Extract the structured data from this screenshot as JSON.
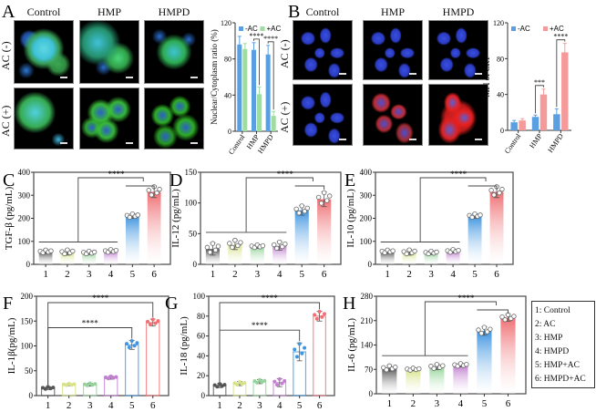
{
  "panel_A": {
    "letter": "A",
    "columns": [
      "Control",
      "HMP",
      "HMPD"
    ],
    "rows": [
      "AC (-)",
      "AC (+)"
    ]
  },
  "panel_B": {
    "letter": "B",
    "columns": [
      "Control",
      "HMP",
      "HMPD"
    ],
    "rows": [
      "AC (-)",
      "AC (+)"
    ]
  },
  "legend_H": [
    "1: Control",
    "2: AC",
    "3: HMP",
    "4: HMPD",
    "5: HMP+AC",
    "6: HMPD+AC"
  ],
  "colors": {
    "minusAC": "#5b9fe3",
    "plusAC_A": "#9fdca0",
    "plusAC_B": "#f59a9a",
    "g1": "#555555",
    "g2": "#d8e28a",
    "g3": "#94d49a",
    "g4": "#c27fd0",
    "g5": "#3f95e0",
    "g6": "#ef6f73"
  },
  "chart_data": [
    {
      "panel": "A",
      "type": "bar",
      "grouped": true,
      "title": "",
      "xlabel": "",
      "ylabel": "Nuclear/Cytoplasm ratio (%)",
      "ylim": [
        0,
        120
      ],
      "yticks": [
        0,
        40,
        80,
        120
      ],
      "categories": [
        "Control",
        "HMP",
        "HMPD"
      ],
      "series": [
        {
          "name": "-AC",
          "color": "#5b9fe3",
          "values": [
            96,
            90,
            85
          ],
          "err": [
            9,
            8,
            10
          ]
        },
        {
          "name": "+AC",
          "color": "#9fdca0",
          "values": [
            91,
            41,
            17
          ],
          "err": [
            6,
            8,
            5
          ]
        }
      ],
      "significance": [
        {
          "category": 1,
          "label": "****"
        },
        {
          "category": 2,
          "label": "****"
        }
      ],
      "legend": "top"
    },
    {
      "panel": "B",
      "type": "bar",
      "grouped": true,
      "title": "",
      "xlabel": "",
      "ylabel": "MFI of CRT",
      "ylim": [
        0,
        120
      ],
      "yticks": [
        0,
        40,
        80,
        120
      ],
      "categories": [
        "Control",
        "HMP",
        "HMPD"
      ],
      "series": [
        {
          "name": "-AC",
          "color": "#5b9fe3",
          "values": [
            9,
            15,
            18
          ],
          "err": [
            2,
            2,
            6
          ]
        },
        {
          "name": "+AC",
          "color": "#f59a9a",
          "values": [
            11,
            40,
            87
          ],
          "err": [
            2,
            6,
            10
          ]
        }
      ],
      "significance": [
        {
          "category": 1,
          "label": "***"
        },
        {
          "category": 2,
          "label": "****"
        }
      ],
      "legend": "top"
    },
    {
      "panel": "C",
      "type": "bar",
      "style": "gradient",
      "ylabel": "TGF-β (pg/mL)",
      "ylim": [
        0,
        400
      ],
      "yticks": [
        0,
        100,
        200,
        300,
        400
      ],
      "categories": [
        "1",
        "2",
        "3",
        "4",
        "5",
        "6"
      ],
      "values": [
        55,
        52,
        50,
        57,
        210,
        315
      ],
      "err": [
        8,
        12,
        8,
        8,
        10,
        25
      ],
      "significance": [
        {
          "type": "group",
          "from": [
            1,
            4
          ],
          "to": [
            5,
            6
          ],
          "label": "****"
        }
      ]
    },
    {
      "panel": "D",
      "type": "bar",
      "style": "gradient",
      "ylabel": "IL-12 (pg/mL)",
      "ylim": [
        0,
        150
      ],
      "yticks": [
        0,
        50,
        100,
        150
      ],
      "categories": [
        "1",
        "2",
        "3",
        "4",
        "5",
        "6"
      ],
      "values": [
        25,
        32,
        29,
        30,
        88,
        106
      ],
      "err": [
        10,
        8,
        3,
        7,
        8,
        12
      ],
      "significance": [
        {
          "type": "group",
          "from": [
            1,
            4
          ],
          "to": [
            5,
            6
          ],
          "label": "****"
        }
      ]
    },
    {
      "panel": "E",
      "type": "bar",
      "style": "gradient",
      "ylabel": "IL-10 (pg/mL)",
      "ylim": [
        0,
        400
      ],
      "yticks": [
        0,
        100,
        200,
        300,
        400
      ],
      "categories": [
        "1",
        "2",
        "3",
        "4",
        "5",
        "6"
      ],
      "values": [
        55,
        52,
        50,
        57,
        210,
        315
      ],
      "err": [
        8,
        12,
        8,
        8,
        10,
        25
      ],
      "significance": [
        {
          "type": "group",
          "from": [
            1,
            4
          ],
          "to": [
            5,
            6
          ],
          "label": "****"
        }
      ]
    },
    {
      "panel": "F",
      "type": "bar",
      "style": "open",
      "ylabel": "IL-1β(pg/mL)",
      "ylim": [
        0,
        200
      ],
      "yticks": [
        0,
        50,
        100,
        150,
        200
      ],
      "categories": [
        "1",
        "2",
        "3",
        "4",
        "5",
        "6"
      ],
      "values": [
        15,
        22,
        22,
        36,
        102,
        147
      ],
      "err": [
        3,
        2,
        3,
        3,
        9,
        7
      ],
      "significance": [
        {
          "type": "pair",
          "from": 1,
          "to": 5,
          "label": "****"
        },
        {
          "type": "pair",
          "from": 1,
          "to": 6,
          "label": "****"
        }
      ]
    },
    {
      "panel": "G",
      "type": "bar",
      "style": "open",
      "ylabel": "IL-18 (pg/mL)",
      "ylim": [
        0,
        100
      ],
      "yticks": [
        0,
        20,
        40,
        60,
        80,
        100
      ],
      "categories": [
        "1",
        "2",
        "3",
        "4",
        "5",
        "6"
      ],
      "values": [
        10,
        12,
        14,
        13,
        44,
        80
      ],
      "err": [
        2,
        2,
        2,
        4,
        9,
        5
      ],
      "significance": [
        {
          "type": "pair",
          "from": 1,
          "to": 5,
          "label": "****"
        },
        {
          "type": "pair",
          "from": 1,
          "to": 6,
          "label": "****"
        }
      ]
    },
    {
      "panel": "H",
      "type": "bar",
      "style": "gradient",
      "ylabel": "IL-6 (pg/mL)",
      "ylim": [
        0,
        280
      ],
      "yticks": [
        0,
        70,
        140,
        210,
        280
      ],
      "categories": [
        "1",
        "2",
        "3",
        "4",
        "5",
        "6"
      ],
      "values": [
        73,
        70,
        77,
        82,
        180,
        218
      ],
      "err": [
        8,
        4,
        8,
        5,
        12,
        10
      ],
      "significance": [
        {
          "type": "group",
          "from": [
            1,
            4
          ],
          "to": [
            5,
            6
          ],
          "label": "****"
        }
      ]
    }
  ]
}
